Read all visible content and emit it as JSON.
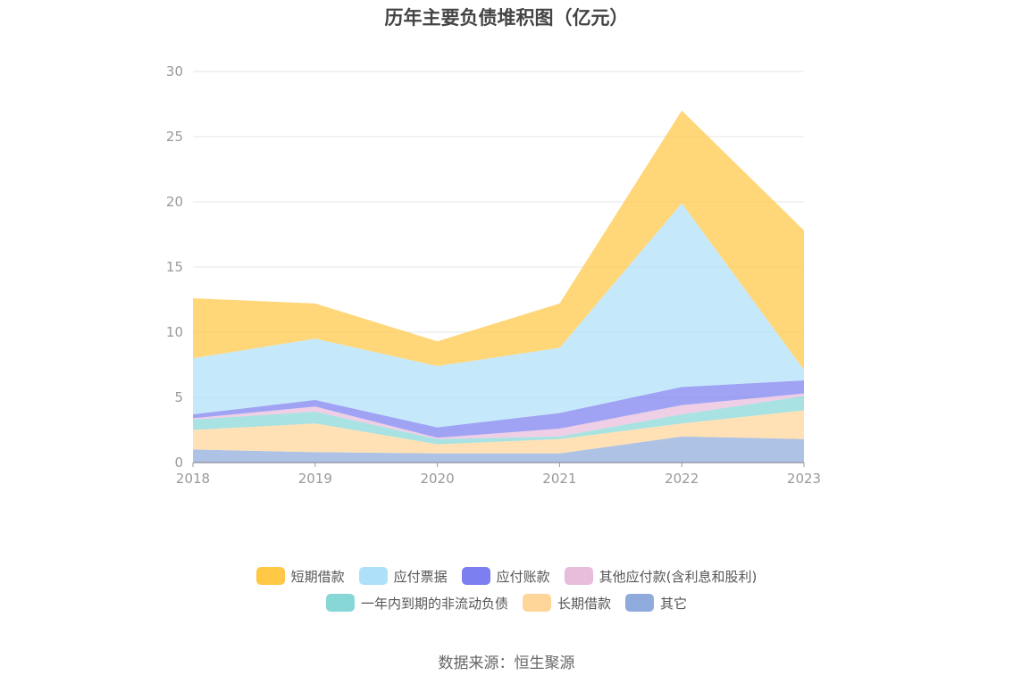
{
  "title": "历年主要负债堆积图（亿元）",
  "source": "数据来源：恒生聚源",
  "chart_data": {
    "type": "area",
    "stacked": true,
    "x": [
      "2018",
      "2019",
      "2020",
      "2021",
      "2022",
      "2023"
    ],
    "ylim": [
      0,
      30
    ],
    "yticks": [
      0,
      5,
      10,
      15,
      20,
      25,
      30
    ],
    "grid": true,
    "legend_position": "bottom",
    "series": [
      {
        "name": "其它",
        "color": "#8EABDB",
        "values": [
          1.0,
          0.8,
          0.7,
          0.7,
          2.0,
          1.8
        ]
      },
      {
        "name": "长期借款",
        "color": "#FFD699",
        "values": [
          1.5,
          2.2,
          0.7,
          1.1,
          1.0,
          2.2
        ]
      },
      {
        "name": "一年内到期的非流动负债",
        "color": "#88D7D7",
        "values": [
          0.8,
          0.9,
          0.4,
          0.2,
          0.7,
          1.1
        ]
      },
      {
        "name": "其他应付款(含利息和股利)",
        "color": "#E8BCDB",
        "values": [
          0.1,
          0.4,
          0.1,
          0.6,
          0.7,
          0.2
        ]
      },
      {
        "name": "应付账款",
        "color": "#7B7FF0",
        "values": [
          0.3,
          0.5,
          0.8,
          1.2,
          1.4,
          1.0
        ]
      },
      {
        "name": "应付票据",
        "color": "#AEE1F9",
        "values": [
          4.3,
          4.7,
          4.7,
          5.0,
          14.1,
          0.8
        ]
      },
      {
        "name": "短期借款",
        "color": "#FFC845",
        "values": [
          4.6,
          2.7,
          1.9,
          3.4,
          7.1,
          10.7
        ]
      }
    ]
  },
  "legend": {
    "row1": [
      {
        "label": "短期借款",
        "color": "#FFC845"
      },
      {
        "label": "应付票据",
        "color": "#AEE1F9"
      },
      {
        "label": "应付账款",
        "color": "#7B7FF0"
      },
      {
        "label": "其他应付款(含利息和股利)",
        "color": "#E8BCDB"
      }
    ],
    "row2": [
      {
        "label": "一年内到期的非流动负债",
        "color": "#88D7D7"
      },
      {
        "label": "长期借款",
        "color": "#FFD699"
      },
      {
        "label": "其它",
        "color": "#8EABDB"
      }
    ]
  }
}
